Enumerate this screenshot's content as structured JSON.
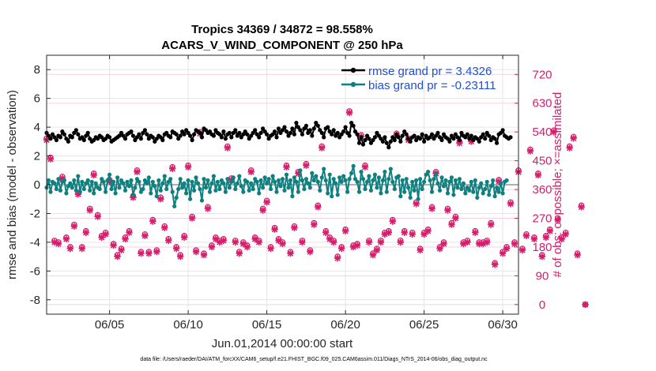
{
  "chart_data": {
    "type": "line",
    "title_line1": "Tropics 34369 / 34872 = 98.558%",
    "title_line2": "ACARS_V_WIND_COMPONENT @ 250 hPa",
    "xlabel": "Jun.01,2014 00:00:00 start",
    "ylabel_left": "rmse and bias (model - observation)",
    "ylabel_right": "# of obs: o=possible; ×=assimilated",
    "x_unit": "day of June 2014 (1.0 = Jun.01 00:00)",
    "xlim": [
      1,
      31
    ],
    "ylim_left": [
      -9,
      9
    ],
    "ylim_right": [
      -30,
      780
    ],
    "x_ticks": [
      {
        "value": 5,
        "label": "06/05"
      },
      {
        "value": 10,
        "label": "06/10"
      },
      {
        "value": 15,
        "label": "06/15"
      },
      {
        "value": 20,
        "label": "06/20"
      },
      {
        "value": 25,
        "label": "06/25"
      },
      {
        "value": 30,
        "label": "06/30"
      }
    ],
    "y_ticks_left": [
      {
        "value": 8,
        "label": "8"
      },
      {
        "value": 6,
        "label": "6"
      },
      {
        "value": 4,
        "label": "4"
      },
      {
        "value": 2,
        "label": "2"
      },
      {
        "value": 0,
        "label": "0"
      },
      {
        "value": -2,
        "label": "-2"
      },
      {
        "value": -4,
        "label": "-4"
      },
      {
        "value": -6,
        "label": "-6"
      },
      {
        "value": -8,
        "label": "-8"
      }
    ],
    "y_ticks_right": [
      {
        "value": 720,
        "label": "720"
      },
      {
        "value": 630,
        "label": "630"
      },
      {
        "value": 540,
        "label": "540"
      },
      {
        "value": 450,
        "label": "450"
      },
      {
        "value": 360,
        "label": "360"
      },
      {
        "value": 270,
        "label": "270"
      },
      {
        "value": 180,
        "label": "180"
      },
      {
        "value": 90,
        "label": "90"
      },
      {
        "value": 0,
        "label": "0"
      }
    ],
    "grid": true,
    "legend_position": "top-right",
    "series": [
      {
        "name": "rmse grand pr = 3.4326",
        "color": "#000000",
        "axis": "left",
        "x_start": 1.0,
        "x_step": 0.125,
        "values": [
          3.6,
          3.4,
          3.2,
          3.5,
          3.3,
          3.1,
          3.4,
          3.3,
          3.7,
          3.5,
          3.2,
          3.0,
          3.4,
          3.3,
          3.6,
          3.8,
          3.5,
          3.2,
          3.3,
          3.1,
          3.4,
          3.6,
          3.2,
          3.0,
          3.1,
          3.3,
          3.2,
          3.4,
          3.3,
          3.1,
          3.2,
          3.4,
          3.3,
          3.0,
          3.1,
          3.2,
          3.3,
          3.4,
          3.6,
          3.4,
          3.2,
          3.5,
          3.6,
          3.7,
          3.4,
          3.1,
          3.3,
          3.5,
          3.2,
          3.6,
          3.8,
          3.5,
          3.2,
          3.4,
          3.3,
          3.0,
          3.2,
          3.4,
          3.3,
          3.1,
          3.5,
          3.6,
          3.4,
          3.3,
          3.7,
          3.6,
          3.5,
          3.2,
          3.4,
          3.7,
          3.5,
          3.8,
          3.6,
          3.4,
          3.1,
          3.5,
          3.8,
          3.7,
          3.6,
          3.3,
          3.9,
          3.8,
          3.6,
          3.7,
          3.5,
          3.4,
          3.8,
          3.6,
          3.5,
          3.3,
          3.7,
          3.2,
          3.5,
          3.6,
          3.3,
          3.6,
          3.8,
          3.4,
          3.6,
          3.3,
          3.5,
          3.7,
          3.5,
          3.2,
          3.4,
          3.6,
          3.8,
          3.5,
          3.3,
          3.6,
          3.9,
          3.7,
          3.5,
          3.2,
          3.4,
          3.5,
          3.7,
          3.3,
          3.9,
          3.6,
          3.8,
          4.0,
          3.7,
          3.4,
          3.6,
          3.9,
          3.5,
          4.3,
          4.0,
          3.8,
          3.5,
          3.9,
          4.1,
          3.6,
          3.8,
          3.4,
          3.9,
          4.3,
          4.1,
          3.8,
          3.6,
          3.3,
          3.9,
          4.0,
          3.7,
          3.5,
          3.8,
          3.4,
          3.6,
          3.3,
          3.5,
          3.7,
          4.0,
          3.6,
          3.4,
          4.3,
          4.1,
          3.7,
          3.5,
          2.9,
          3.3,
          2.8,
          3.1,
          3.4,
          3.2,
          2.9,
          3.1,
          3.3,
          3.6,
          3.4,
          3.2,
          3.0,
          3.3,
          2.9,
          2.6,
          3.0,
          3.3,
          3.1,
          3.5,
          3.3,
          3.0,
          3.4,
          3.7,
          3.5,
          3.2,
          3.0,
          3.3,
          3.4,
          3.1,
          3.3,
          3.2,
          3.5,
          3.0,
          3.4,
          3.2,
          3.3,
          3.5,
          3.2,
          3.4,
          3.6,
          3.3,
          3.1,
          3.5,
          3.3,
          3.2,
          3.0,
          3.4,
          3.2,
          3.5,
          3.3,
          3.1,
          3.6,
          3.4,
          3.3,
          3.5,
          3.2,
          3.4,
          3.1,
          3.3,
          3.2,
          3.0,
          3.3,
          3.5,
          3.2,
          3.6,
          3.4,
          3.1,
          3.3,
          3.2,
          2.9,
          3.5,
          3.6,
          3.8,
          3.4,
          3.3,
          3.2,
          3.3
        ]
      },
      {
        "name": "bias grand pr = -0.23111",
        "color": "#0e8080",
        "axis": "left",
        "x_start": 1.0,
        "x_step": 0.125,
        "values": [
          -0.2,
          0.3,
          -0.5,
          0.2,
          0.1,
          -0.3,
          0.4,
          -0.4,
          0.2,
          0.3,
          -0.6,
          -0.1,
          0.1,
          -0.2,
          0.3,
          -0.4,
          0.6,
          -0.5,
          0.2,
          -0.3,
          0.1,
          0.3,
          -0.4,
          0.2,
          -0.6,
          0.1,
          -0.2,
          -0.3,
          0.4,
          0.2,
          -0.5,
          0.3,
          0.7,
          -0.3,
          0.2,
          -0.6,
          0.5,
          -0.2,
          0.3,
          0.1,
          -0.4,
          0.2,
          -0.1,
          0.3,
          -0.7,
          -0.2,
          0.4,
          0.2,
          -0.5,
          -0.3,
          0.3,
          0.1,
          0.5,
          -0.6,
          0.2,
          -0.1,
          -0.8,
          0.3,
          -0.4,
          0.1,
          0.6,
          -0.3,
          0.2,
          0.4,
          -0.5,
          -1.5,
          -0.9,
          -0.3,
          0.4,
          -0.2,
          0.1,
          -0.6,
          0.3,
          -1.0,
          0.2,
          -0.4,
          0.5,
          0.1,
          -0.3,
          -1.1,
          0.4,
          -0.2,
          0.3,
          -0.5,
          0.1,
          0.6,
          -0.4,
          0.2,
          -0.3,
          0.3,
          0.1,
          -0.5,
          0.4,
          -0.2,
          0.2,
          0.5,
          -0.3,
          0.1,
          0.6,
          -0.1,
          -0.5,
          0.3,
          0.2,
          -0.4,
          0.1,
          -0.3,
          0.4,
          0.2,
          -0.6,
          0.3,
          -0.2,
          0.5,
          0.1,
          0.4,
          -0.3,
          0.6,
          0.2,
          -0.5,
          0.3,
          -0.1,
          0.4,
          -0.4,
          0.7,
          -0.2,
          0.3,
          -0.8,
          0.5,
          0.2,
          -0.5,
          1.0,
          0.3,
          -0.3,
          0.4,
          0.1,
          -0.2,
          0.8,
          0.3,
          0.6,
          0.2,
          -0.4,
          0.5,
          1.1,
          0.3,
          -0.6,
          0.7,
          -0.8,
          0.4,
          0.1,
          -0.7,
          0.5,
          0.2,
          0.6,
          0.3,
          -0.5,
          0.4,
          0.8,
          1.3,
          0.4,
          0.2,
          -0.5,
          0.9,
          0.4,
          -0.3,
          0.2,
          0.6,
          -0.4,
          0.3,
          0.7,
          -0.2,
          0.5,
          -0.6,
          0.3,
          0.9,
          -0.5,
          0.4,
          1.1,
          0.2,
          -0.3,
          0.5,
          0.6,
          -0.8,
          0.3,
          -0.5,
          0.4,
          -0.2,
          -0.9,
          0.2,
          -0.4,
          0.3,
          -1.0,
          0.4,
          -0.3,
          0.2,
          0.7,
          0.9,
          0.3,
          -0.5,
          0.4,
          0.8,
          0.1,
          -0.4,
          0.5,
          -0.1,
          0.3,
          -0.6,
          0.2,
          0.5,
          -0.7,
          0.3,
          -0.2,
          0.4,
          -0.3,
          0.1,
          -0.6,
          -0.2,
          -0.4,
          0.2,
          -0.5,
          0.3,
          -0.9,
          -0.2,
          0.1,
          -0.6,
          -0.3,
          0.2,
          -0.7,
          -0.1,
          0.3,
          -0.8,
          -0.2,
          -0.5,
          0.1,
          -0.6,
          0.2,
          0.3
        ]
      },
      {
        "name": "# of obs possible (o)",
        "color": "#d81b6a",
        "axis": "right",
        "x_start": 1.0,
        "x_step": 0.25,
        "values": [
          520,
          460,
          200,
          195,
          400,
          210,
          180,
          250,
          350,
          180,
          230,
          300,
          410,
          280,
          215,
          225,
          390,
          190,
          155,
          175,
          210,
          230,
          340,
          420,
          165,
          220,
          165,
          265,
          170,
          335,
          245,
          205,
          430,
          180,
          155,
          215,
          435,
          275,
          170,
          540,
          160,
          305,
          185,
          210,
          200,
          205,
          495,
          395,
          200,
          165,
          195,
          185,
          420,
          210,
          200,
          300,
          325,
          180,
          240,
          205,
          195,
          435,
          165,
          245,
          415,
          200,
          440,
          170,
          255,
          310,
          495,
          230,
          210,
          200,
          150,
          180,
          235,
          605,
          185,
          190,
          530,
          435,
          200,
          160,
          175,
          200,
          225,
          230,
          265,
          535,
          200,
          230,
          520,
          225,
          320,
          175,
          225,
          235,
          305,
          415,
          180,
          195,
          300,
          255,
          275,
          510,
          195,
          200,
          515,
          230,
          195,
          195,
          200,
          255,
          130,
          390,
          165,
          180,
          320,
          195,
          420,
          175,
          220,
          485,
          210,
          410,
          155,
          215,
          235,
          545,
          270,
          210,
          225,
          495,
          525,
          160,
          310,
          0
        ]
      },
      {
        "name": "# of obs assimilated (×)",
        "color": "#d81b6a",
        "axis": "right",
        "x_start": 1.0,
        "x_step": 0.25,
        "values": [
          515,
          455,
          195,
          190,
          395,
          205,
          175,
          245,
          345,
          175,
          225,
          295,
          405,
          275,
          210,
          220,
          385,
          185,
          150,
          170,
          205,
          225,
          335,
          415,
          160,
          215,
          160,
          260,
          165,
          330,
          240,
          200,
          425,
          175,
          150,
          210,
          430,
          270,
          165,
          535,
          155,
          300,
          180,
          205,
          195,
          200,
          490,
          390,
          195,
          160,
          190,
          180,
          415,
          205,
          195,
          295,
          320,
          175,
          235,
          200,
          190,
          430,
          160,
          240,
          410,
          195,
          435,
          165,
          250,
          305,
          490,
          225,
          205,
          195,
          145,
          175,
          230,
          600,
          180,
          185,
          525,
          430,
          195,
          155,
          170,
          195,
          220,
          225,
          260,
          530,
          195,
          225,
          515,
          220,
          315,
          170,
          220,
          230,
          300,
          410,
          175,
          190,
          295,
          250,
          270,
          505,
          190,
          195,
          510,
          225,
          190,
          190,
          195,
          250,
          125,
          385,
          160,
          175,
          315,
          190,
          415,
          170,
          215,
          480,
          205,
          405,
          150,
          210,
          230,
          540,
          265,
          205,
          220,
          490,
          520,
          155,
          305,
          0
        ]
      }
    ]
  },
  "legend": {
    "rmse_label": "rmse grand pr = 3.4326",
    "bias_label": "bias grand pr = -0.23111"
  },
  "footer": {
    "text": "data file: /Users/raeder/DAI/ATM_forcXX/CAM6_setup/f.e21.FHIST_BGC.f09_025.CAM6assim.011/Diags_NTrS_2014-06/obs_diag_output.nc"
  },
  "colors": {
    "rmse": "#000000",
    "bias": "#0e8080",
    "obs": "#d81b6a",
    "legend_text": "#1f4fd8",
    "grid": "#e6e6e6",
    "zero_line": "#b0b0b0"
  }
}
